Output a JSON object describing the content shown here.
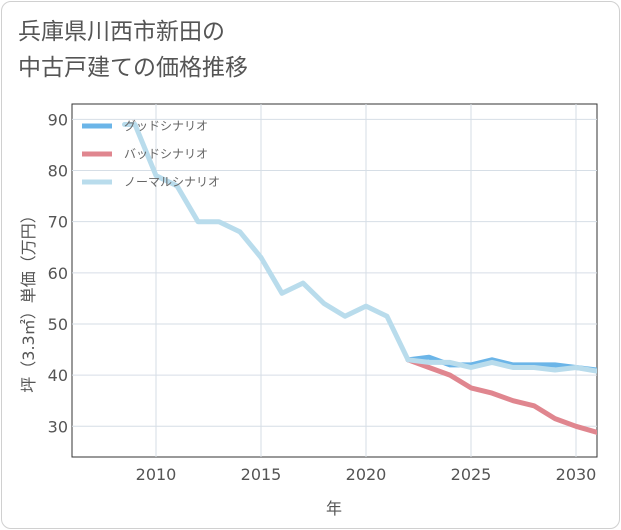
{
  "title_lines": [
    "兵庫県川西市新田の",
    "中古戸建ての価格推移"
  ],
  "chart_data": {
    "type": "line",
    "xlabel": "年",
    "ylabel": "坪（3.3㎡）単価（万円）",
    "xlim": [
      2006,
      2031
    ],
    "ylim": [
      24,
      93
    ],
    "xticks": [
      2010,
      2015,
      2020,
      2025,
      2030
    ],
    "yticks": [
      30,
      40,
      50,
      60,
      70,
      80,
      90
    ],
    "grid": true,
    "legend_position": "top-left",
    "series": [
      {
        "name": "グッドシナリオ",
        "color": "#6bb5e8",
        "x": [
          2022,
          2023,
          2024,
          2025,
          2026,
          2027,
          2028,
          2029,
          2030,
          2031
        ],
        "y": [
          43,
          43.5,
          42,
          42,
          43,
          42,
          42,
          42,
          41.5,
          41
        ]
      },
      {
        "name": "バッドシナリオ",
        "color": "#e0868f",
        "x": [
          2022,
          2023,
          2024,
          2025,
          2026,
          2027,
          2028,
          2029,
          2030,
          2031
        ],
        "y": [
          43,
          41.5,
          40,
          37.5,
          36.5,
          35,
          34,
          31.5,
          30,
          28.8
        ]
      },
      {
        "name": "ノーマルシナリオ",
        "color": "#b9dcec",
        "x": [
          2008.5,
          2009,
          2010,
          2011,
          2012,
          2013,
          2014,
          2015,
          2016,
          2017,
          2018,
          2019,
          2020,
          2021,
          2022,
          2023,
          2024,
          2025,
          2026,
          2027,
          2028,
          2029,
          2030,
          2031
        ],
        "y": [
          89,
          89,
          79,
          77,
          70,
          70,
          68,
          63,
          56,
          58,
          54,
          51.5,
          53.5,
          51.5,
          43,
          42.5,
          42.5,
          41.5,
          42.5,
          41.5,
          41.5,
          41,
          41.5,
          40.8
        ]
      }
    ]
  }
}
